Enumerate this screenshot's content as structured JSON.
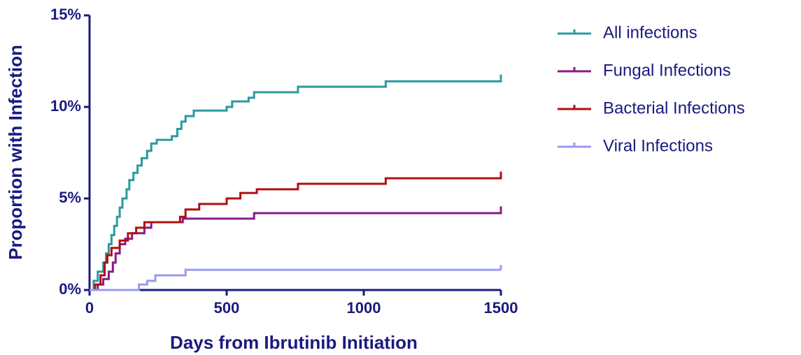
{
  "chart_data": {
    "type": "line",
    "step": true,
    "xlabel": "Days from Ibrutinib Initiation",
    "ylabel": "Proportion with Infection",
    "xlim": [
      0,
      1500
    ],
    "xticks": [
      0,
      500,
      1000,
      1500
    ],
    "ylim": [
      0,
      15
    ],
    "yticks": [
      {
        "value": 0,
        "label": "0%"
      },
      {
        "value": 5,
        "label": "5%"
      },
      {
        "value": 10,
        "label": "10%"
      },
      {
        "value": 15,
        "label": "15%"
      }
    ],
    "legend": "right",
    "series": [
      {
        "name": "All infections",
        "color": "#2a9aa0",
        "x": [
          0,
          15,
          30,
          50,
          60,
          70,
          80,
          90,
          100,
          110,
          120,
          135,
          145,
          160,
          175,
          190,
          210,
          225,
          245,
          300,
          320,
          335,
          350,
          380,
          500,
          520,
          580,
          600,
          760,
          1080,
          1500
        ],
        "values": [
          0,
          0.5,
          1.0,
          1.5,
          2.0,
          2.5,
          3.0,
          3.5,
          4.0,
          4.5,
          5.0,
          5.5,
          6.0,
          6.4,
          6.8,
          7.2,
          7.6,
          8.0,
          8.2,
          8.4,
          8.8,
          9.2,
          9.5,
          9.8,
          10.0,
          10.3,
          10.5,
          10.8,
          11.1,
          11.4,
          11.5
        ]
      },
      {
        "name": "Fungal Infections",
        "color": "#8b1a8b",
        "x": [
          0,
          30,
          50,
          70,
          85,
          95,
          110,
          130,
          155,
          200,
          225,
          340,
          600,
          1500
        ],
        "values": [
          0,
          0.3,
          0.6,
          1.0,
          1.5,
          2.0,
          2.5,
          2.8,
          3.1,
          3.4,
          3.7,
          3.9,
          4.2,
          4.3
        ]
      },
      {
        "name": "Bacterial Infections",
        "color": "#b01010",
        "x": [
          0,
          20,
          40,
          55,
          65,
          80,
          110,
          140,
          170,
          200,
          330,
          350,
          400,
          500,
          550,
          610,
          760,
          1080,
          1500
        ],
        "values": [
          0,
          0.3,
          0.8,
          1.5,
          1.9,
          2.3,
          2.7,
          3.1,
          3.4,
          3.7,
          4.0,
          4.4,
          4.7,
          5.0,
          5.3,
          5.5,
          5.8,
          6.1,
          6.2
        ]
      },
      {
        "name": "Viral Infections",
        "color": "#9999ee",
        "x": [
          0,
          180,
          210,
          240,
          350,
          1500
        ],
        "values": [
          0,
          0.3,
          0.5,
          0.8,
          1.1,
          1.1
        ]
      }
    ]
  }
}
